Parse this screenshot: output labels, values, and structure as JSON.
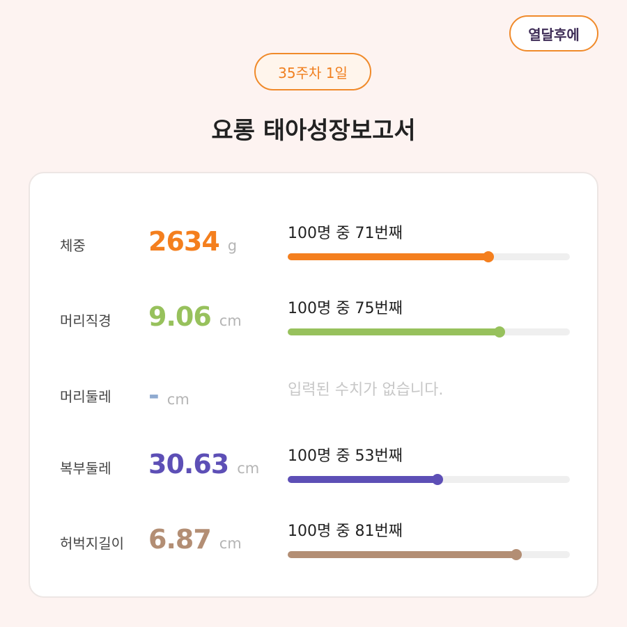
{
  "header": {
    "brand": "열달후에",
    "week_badge": "35주차 1일",
    "title": "요롱 태아성장보고서"
  },
  "metrics": [
    {
      "label": "체중",
      "value": "2634",
      "unit": "g",
      "rank_text": "100명 중 71번째",
      "percent": 71,
      "color": "#f47f1e"
    },
    {
      "label": "머리직경",
      "value": "9.06",
      "unit": "cm",
      "rank_text": "100명 중 75번째",
      "percent": 75,
      "color": "#97c15c"
    },
    {
      "label": "머리둘레",
      "value": "-",
      "unit": "cm",
      "empty_text": "입력된 수치가 없습니다.",
      "color": "#8faad0"
    },
    {
      "label": "복부둘레",
      "value": "30.63",
      "unit": "cm",
      "rank_text": "100명 중 53번째",
      "percent": 53,
      "color": "#5d4fb6"
    },
    {
      "label": "허벅지길이",
      "value": "6.87",
      "unit": "cm",
      "rank_text": "100명 중 81번째",
      "percent": 81,
      "color": "#b38e74"
    }
  ]
}
